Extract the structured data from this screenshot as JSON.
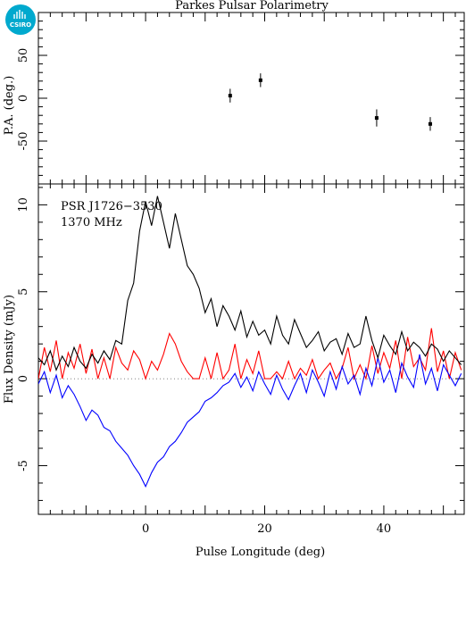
{
  "title": "Parkes Pulsar Polarimetry",
  "logo": {
    "text": "CSIRO",
    "color": "#00a9ce",
    "icon": "csiro-logo-icon"
  },
  "annotation": {
    "line1": "PSR J1726−3530",
    "line2": "1370 MHz"
  },
  "colors": {
    "total": "#000000",
    "linear": "#ff0000",
    "circular": "#0000ff",
    "axis": "#000000"
  },
  "chart_data": [
    {
      "type": "scatter",
      "panel": "top",
      "ylabel": "P.A. (deg.)",
      "xlim": [
        -18,
        53.5
      ],
      "ylim": [
        -100,
        100
      ],
      "yticks": [
        -50,
        0,
        50
      ],
      "points": [
        {
          "x": 14.2,
          "y": 3,
          "err": 8
        },
        {
          "x": 19.3,
          "y": 21,
          "err": 8
        },
        {
          "x": 38.8,
          "y": -23,
          "err": 10
        },
        {
          "x": 47.8,
          "y": -30,
          "err": 8
        }
      ]
    },
    {
      "type": "line",
      "panel": "bottom",
      "xlabel": "Pulse Longitude (deg)",
      "ylabel": "Flux Density (mJy)",
      "xlim": [
        -18,
        53.5
      ],
      "ylim": [
        -7.8,
        11.2
      ],
      "xticks": [
        0,
        20,
        40
      ],
      "yticks": [
        -5,
        0,
        5,
        10
      ],
      "series": [
        {
          "key": "total",
          "color": "#000000",
          "x": [
            -18,
            -17,
            -16,
            -15,
            -14,
            -13,
            -12,
            -11,
            -10,
            -9,
            -8,
            -7,
            -6,
            -5,
            -4,
            -3,
            -2,
            -1,
            0,
            1,
            2,
            3,
            4,
            5,
            6,
            7,
            8,
            9,
            10,
            11,
            12,
            13,
            14,
            15,
            16,
            17,
            18,
            19,
            20,
            21,
            22,
            23,
            24,
            25,
            26,
            27,
            28,
            29,
            30,
            31,
            32,
            33,
            34,
            35,
            36,
            37,
            38,
            39,
            40,
            41,
            42,
            43,
            44,
            45,
            46,
            47,
            48,
            49,
            50,
            51,
            52,
            53
          ],
          "y": [
            1.2,
            0.8,
            1.6,
            0.5,
            1.3,
            0.7,
            1.8,
            1.0,
            0.6,
            1.4,
            0.9,
            1.6,
            1.1,
            2.2,
            2.0,
            4.5,
            5.5,
            8.5,
            10.2,
            8.8,
            10.5,
            9.0,
            7.5,
            9.5,
            8.0,
            6.5,
            6.0,
            5.2,
            3.8,
            4.6,
            3.0,
            4.2,
            3.6,
            2.8,
            3.9,
            2.4,
            3.3,
            2.5,
            2.8,
            2.0,
            3.6,
            2.5,
            2.0,
            3.4,
            2.6,
            1.8,
            2.2,
            2.7,
            1.6,
            2.1,
            2.3,
            1.4,
            2.6,
            1.8,
            2.0,
            3.6,
            2.2,
            1.2,
            2.5,
            1.9,
            1.4,
            2.7,
            1.6,
            2.1,
            1.8,
            1.3,
            2.0,
            1.7,
            1.0,
            1.6,
            1.2,
            0.8
          ]
        },
        {
          "key": "linear",
          "color": "#ff0000",
          "x": [
            -18,
            -17,
            -16,
            -15,
            -14,
            -13,
            -12,
            -11,
            -10,
            -9,
            -8,
            -7,
            -6,
            -5,
            -4,
            -3,
            -2,
            -1,
            0,
            1,
            2,
            3,
            4,
            5,
            6,
            7,
            8,
            9,
            10,
            11,
            12,
            13,
            14,
            15,
            16,
            17,
            18,
            19,
            20,
            21,
            22,
            23,
            24,
            25,
            26,
            27,
            28,
            29,
            30,
            31,
            32,
            33,
            34,
            35,
            36,
            37,
            38,
            39,
            40,
            41,
            42,
            43,
            44,
            45,
            46,
            47,
            48,
            49,
            50,
            51,
            52,
            53
          ],
          "y": [
            0,
            1.8,
            0.4,
            2.2,
            0,
            1.5,
            0.6,
            2.0,
            0.3,
            1.7,
            0,
            1.2,
            0,
            1.8,
            0.9,
            0.5,
            1.6,
            1.1,
            0,
            1.0,
            0.5,
            1.4,
            2.6,
            2.0,
            1.0,
            0.4,
            0,
            0,
            1.2,
            0,
            1.5,
            0,
            0.5,
            2.0,
            0,
            1.1,
            0.3,
            1.6,
            0,
            0,
            0.4,
            0,
            1.0,
            0,
            0.6,
            0.2,
            1.1,
            0,
            0.5,
            0.9,
            0,
            0.6,
            1.8,
            0,
            0.8,
            0,
            1.9,
            0.3,
            1.5,
            0.6,
            2.2,
            0,
            2.4,
            0.7,
            1.2,
            0.5,
            2.9,
            0.4,
            1.6,
            0,
            1.5,
            0.5
          ]
        },
        {
          "key": "circular",
          "color": "#0000ff",
          "x": [
            -18,
            -17,
            -16,
            -15,
            -14,
            -13,
            -12,
            -11,
            -10,
            -9,
            -8,
            -7,
            -6,
            -5,
            -4,
            -3,
            -2,
            -1,
            0,
            1,
            2,
            3,
            4,
            5,
            6,
            7,
            8,
            9,
            10,
            11,
            12,
            13,
            14,
            15,
            16,
            17,
            18,
            19,
            20,
            21,
            22,
            23,
            24,
            25,
            26,
            27,
            28,
            29,
            30,
            31,
            32,
            33,
            34,
            35,
            36,
            37,
            38,
            39,
            40,
            41,
            42,
            43,
            44,
            45,
            46,
            47,
            48,
            49,
            50,
            51,
            52,
            53
          ],
          "y": [
            -0.3,
            0.4,
            -0.8,
            0.2,
            -1.1,
            -0.4,
            -0.9,
            -1.6,
            -2.4,
            -1.8,
            -2.1,
            -2.8,
            -3.0,
            -3.6,
            -4.0,
            -4.4,
            -5.0,
            -5.5,
            -6.2,
            -5.4,
            -4.8,
            -4.5,
            -3.9,
            -3.6,
            -3.1,
            -2.5,
            -2.2,
            -1.9,
            -1.3,
            -1.1,
            -0.8,
            -0.4,
            -0.2,
            0.3,
            -0.5,
            0.1,
            -0.7,
            0.4,
            -0.3,
            -0.9,
            0.2,
            -0.6,
            -1.2,
            -0.4,
            0.3,
            -0.8,
            0.5,
            -0.2,
            -1.0,
            0.4,
            -0.6,
            0.7,
            -0.3,
            0.2,
            -0.9,
            0.6,
            -0.4,
            1.2,
            -0.2,
            0.5,
            -0.8,
            0.9,
            0.1,
            -0.5,
            1.4,
            -0.3,
            0.6,
            -0.7,
            0.8,
            0.2,
            -0.4,
            0.3
          ]
        }
      ]
    }
  ]
}
